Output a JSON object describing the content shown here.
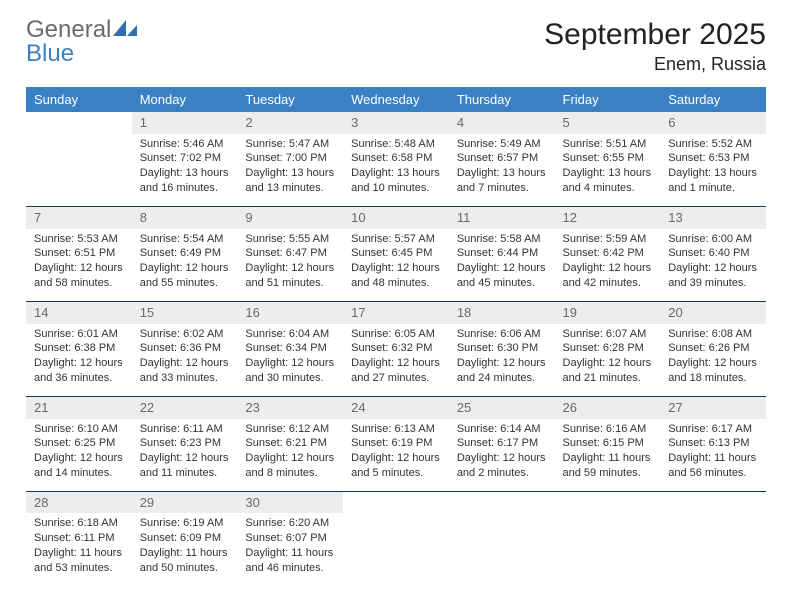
{
  "brand": {
    "word1": "General",
    "word2": "Blue"
  },
  "title": "September 2025",
  "location": "Enem, Russia",
  "columns": [
    "Sunday",
    "Monday",
    "Tuesday",
    "Wednesday",
    "Thursday",
    "Friday",
    "Saturday"
  ],
  "colors": {
    "header_bg": "#3a80c4",
    "header_text": "#ffffff",
    "daynum_bg": "#eceded",
    "daynum_text": "#6a6a6a",
    "rule": "#14365e",
    "logo_gray": "#6b6b6b",
    "logo_blue": "#3a80c4"
  },
  "typography": {
    "title_fontsize": 30,
    "location_fontsize": 18,
    "header_fontsize": 13,
    "daynum_fontsize": 13,
    "details_fontsize": 11
  },
  "weeks": [
    [
      {
        "n": "",
        "lines": []
      },
      {
        "n": "1",
        "lines": [
          "Sunrise: 5:46 AM",
          "Sunset: 7:02 PM",
          "Daylight: 13 hours",
          "and 16 minutes."
        ]
      },
      {
        "n": "2",
        "lines": [
          "Sunrise: 5:47 AM",
          "Sunset: 7:00 PM",
          "Daylight: 13 hours",
          "and 13 minutes."
        ]
      },
      {
        "n": "3",
        "lines": [
          "Sunrise: 5:48 AM",
          "Sunset: 6:58 PM",
          "Daylight: 13 hours",
          "and 10 minutes."
        ]
      },
      {
        "n": "4",
        "lines": [
          "Sunrise: 5:49 AM",
          "Sunset: 6:57 PM",
          "Daylight: 13 hours",
          "and 7 minutes."
        ]
      },
      {
        "n": "5",
        "lines": [
          "Sunrise: 5:51 AM",
          "Sunset: 6:55 PM",
          "Daylight: 13 hours",
          "and 4 minutes."
        ]
      },
      {
        "n": "6",
        "lines": [
          "Sunrise: 5:52 AM",
          "Sunset: 6:53 PM",
          "Daylight: 13 hours",
          "and 1 minute."
        ]
      }
    ],
    [
      {
        "n": "7",
        "lines": [
          "Sunrise: 5:53 AM",
          "Sunset: 6:51 PM",
          "Daylight: 12 hours",
          "and 58 minutes."
        ]
      },
      {
        "n": "8",
        "lines": [
          "Sunrise: 5:54 AM",
          "Sunset: 6:49 PM",
          "Daylight: 12 hours",
          "and 55 minutes."
        ]
      },
      {
        "n": "9",
        "lines": [
          "Sunrise: 5:55 AM",
          "Sunset: 6:47 PM",
          "Daylight: 12 hours",
          "and 51 minutes."
        ]
      },
      {
        "n": "10",
        "lines": [
          "Sunrise: 5:57 AM",
          "Sunset: 6:45 PM",
          "Daylight: 12 hours",
          "and 48 minutes."
        ]
      },
      {
        "n": "11",
        "lines": [
          "Sunrise: 5:58 AM",
          "Sunset: 6:44 PM",
          "Daylight: 12 hours",
          "and 45 minutes."
        ]
      },
      {
        "n": "12",
        "lines": [
          "Sunrise: 5:59 AM",
          "Sunset: 6:42 PM",
          "Daylight: 12 hours",
          "and 42 minutes."
        ]
      },
      {
        "n": "13",
        "lines": [
          "Sunrise: 6:00 AM",
          "Sunset: 6:40 PM",
          "Daylight: 12 hours",
          "and 39 minutes."
        ]
      }
    ],
    [
      {
        "n": "14",
        "lines": [
          "Sunrise: 6:01 AM",
          "Sunset: 6:38 PM",
          "Daylight: 12 hours",
          "and 36 minutes."
        ]
      },
      {
        "n": "15",
        "lines": [
          "Sunrise: 6:02 AM",
          "Sunset: 6:36 PM",
          "Daylight: 12 hours",
          "and 33 minutes."
        ]
      },
      {
        "n": "16",
        "lines": [
          "Sunrise: 6:04 AM",
          "Sunset: 6:34 PM",
          "Daylight: 12 hours",
          "and 30 minutes."
        ]
      },
      {
        "n": "17",
        "lines": [
          "Sunrise: 6:05 AM",
          "Sunset: 6:32 PM",
          "Daylight: 12 hours",
          "and 27 minutes."
        ]
      },
      {
        "n": "18",
        "lines": [
          "Sunrise: 6:06 AM",
          "Sunset: 6:30 PM",
          "Daylight: 12 hours",
          "and 24 minutes."
        ]
      },
      {
        "n": "19",
        "lines": [
          "Sunrise: 6:07 AM",
          "Sunset: 6:28 PM",
          "Daylight: 12 hours",
          "and 21 minutes."
        ]
      },
      {
        "n": "20",
        "lines": [
          "Sunrise: 6:08 AM",
          "Sunset: 6:26 PM",
          "Daylight: 12 hours",
          "and 18 minutes."
        ]
      }
    ],
    [
      {
        "n": "21",
        "lines": [
          "Sunrise: 6:10 AM",
          "Sunset: 6:25 PM",
          "Daylight: 12 hours",
          "and 14 minutes."
        ]
      },
      {
        "n": "22",
        "lines": [
          "Sunrise: 6:11 AM",
          "Sunset: 6:23 PM",
          "Daylight: 12 hours",
          "and 11 minutes."
        ]
      },
      {
        "n": "23",
        "lines": [
          "Sunrise: 6:12 AM",
          "Sunset: 6:21 PM",
          "Daylight: 12 hours",
          "and 8 minutes."
        ]
      },
      {
        "n": "24",
        "lines": [
          "Sunrise: 6:13 AM",
          "Sunset: 6:19 PM",
          "Daylight: 12 hours",
          "and 5 minutes."
        ]
      },
      {
        "n": "25",
        "lines": [
          "Sunrise: 6:14 AM",
          "Sunset: 6:17 PM",
          "Daylight: 12 hours",
          "and 2 minutes."
        ]
      },
      {
        "n": "26",
        "lines": [
          "Sunrise: 6:16 AM",
          "Sunset: 6:15 PM",
          "Daylight: 11 hours",
          "and 59 minutes."
        ]
      },
      {
        "n": "27",
        "lines": [
          "Sunrise: 6:17 AM",
          "Sunset: 6:13 PM",
          "Daylight: 11 hours",
          "and 56 minutes."
        ]
      }
    ],
    [
      {
        "n": "28",
        "lines": [
          "Sunrise: 6:18 AM",
          "Sunset: 6:11 PM",
          "Daylight: 11 hours",
          "and 53 minutes."
        ]
      },
      {
        "n": "29",
        "lines": [
          "Sunrise: 6:19 AM",
          "Sunset: 6:09 PM",
          "Daylight: 11 hours",
          "and 50 minutes."
        ]
      },
      {
        "n": "30",
        "lines": [
          "Sunrise: 6:20 AM",
          "Sunset: 6:07 PM",
          "Daylight: 11 hours",
          "and 46 minutes."
        ]
      },
      {
        "n": "",
        "lines": []
      },
      {
        "n": "",
        "lines": []
      },
      {
        "n": "",
        "lines": []
      },
      {
        "n": "",
        "lines": []
      }
    ]
  ]
}
